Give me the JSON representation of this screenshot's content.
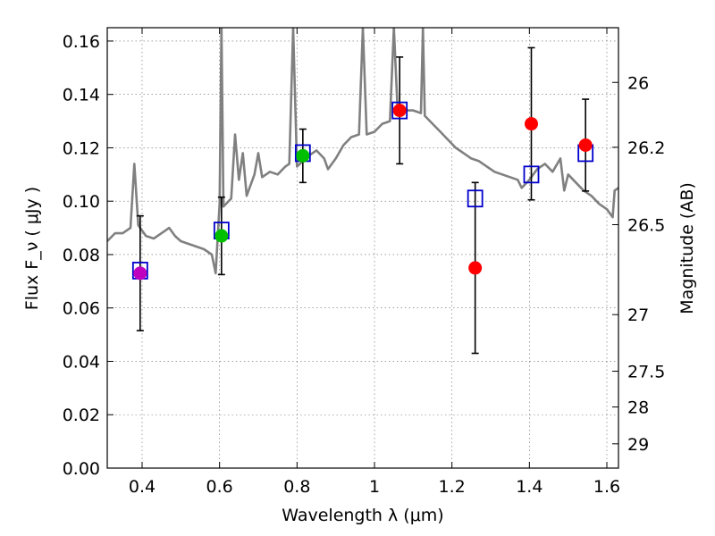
{
  "chart_data": {
    "type": "scatter",
    "title": "",
    "xlabel": "Wavelength  λ (μm)",
    "ylabel": "Flux  F_ν  ( μJy )",
    "ylabel_right": "Magnitude (AB)",
    "xlim": [
      0.31,
      1.63
    ],
    "ylim": [
      0.0,
      0.165
    ],
    "grid": true,
    "x_ticks": [
      0.4,
      0.6,
      0.8,
      1.0,
      1.2,
      1.4,
      1.6
    ],
    "x_tick_labels": [
      "0.4",
      "0.6",
      "0.8",
      "1",
      "1.2",
      "1.4",
      "1.6"
    ],
    "y_ticks": [
      0.0,
      0.02,
      0.04,
      0.06,
      0.08,
      0.1,
      0.12,
      0.14,
      0.16
    ],
    "y_tick_labels": [
      "0.00",
      "0.02",
      "0.04",
      "0.06",
      "0.08",
      "0.10",
      "0.12",
      "0.14",
      "0.16"
    ],
    "right_ticks": [
      {
        "label": "26",
        "flux": 0.1445
      },
      {
        "label": "26.2",
        "flux": 0.1202
      },
      {
        "label": "26.5",
        "flux": 0.0912
      },
      {
        "label": "27",
        "flux": 0.0575
      },
      {
        "label": "27.5",
        "flux": 0.0363
      },
      {
        "label": "28",
        "flux": 0.0229
      },
      {
        "label": "29",
        "flux": 0.0091
      }
    ],
    "observed": [
      {
        "x": 0.395,
        "y": 0.073,
        "err": 0.0215,
        "color": "#bf00bf"
      },
      {
        "x": 0.605,
        "y": 0.087,
        "err": 0.0145,
        "color": "#00bf00"
      },
      {
        "x": 0.815,
        "y": 0.117,
        "err": 0.01,
        "color": "#00bf00"
      },
      {
        "x": 1.065,
        "y": 0.134,
        "err": 0.02,
        "color": "#ff0000"
      },
      {
        "x": 1.26,
        "y": 0.075,
        "err": 0.032,
        "color": "#ff0000"
      },
      {
        "x": 1.405,
        "y": 0.129,
        "err": 0.0285,
        "color": "#ff0000"
      },
      {
        "x": 1.545,
        "y": 0.121,
        "err": 0.0172,
        "color": "#ff0000"
      }
    ],
    "model_points": [
      {
        "x": 0.395,
        "y": 0.074
      },
      {
        "x": 0.605,
        "y": 0.089
      },
      {
        "x": 0.815,
        "y": 0.118
      },
      {
        "x": 1.065,
        "y": 0.134
      },
      {
        "x": 1.26,
        "y": 0.101
      },
      {
        "x": 1.405,
        "y": 0.11
      },
      {
        "x": 1.545,
        "y": 0.118
      }
    ],
    "spectrum": {
      "color": "#808080",
      "points": [
        [
          0.31,
          0.085
        ],
        [
          0.33,
          0.088
        ],
        [
          0.35,
          0.088
        ],
        [
          0.37,
          0.09
        ],
        [
          0.38,
          0.114
        ],
        [
          0.39,
          0.091
        ],
        [
          0.41,
          0.087
        ],
        [
          0.43,
          0.086
        ],
        [
          0.45,
          0.088
        ],
        [
          0.47,
          0.09
        ],
        [
          0.485,
          0.087
        ],
        [
          0.5,
          0.085
        ],
        [
          0.52,
          0.084
        ],
        [
          0.54,
          0.083
        ],
        [
          0.56,
          0.082
        ],
        [
          0.58,
          0.08
        ],
        [
          0.59,
          0.073
        ],
        [
          0.6,
          0.099
        ],
        [
          0.605,
          0.165
        ],
        [
          0.61,
          0.098
        ],
        [
          0.63,
          0.101
        ],
        [
          0.64,
          0.125
        ],
        [
          0.65,
          0.108
        ],
        [
          0.66,
          0.118
        ],
        [
          0.67,
          0.102
        ],
        [
          0.69,
          0.11
        ],
        [
          0.7,
          0.118
        ],
        [
          0.71,
          0.109
        ],
        [
          0.73,
          0.111
        ],
        [
          0.75,
          0.11
        ],
        [
          0.77,
          0.113
        ],
        [
          0.78,
          0.114
        ],
        [
          0.79,
          0.165
        ],
        [
          0.8,
          0.113
        ],
        [
          0.83,
          0.117
        ],
        [
          0.85,
          0.119
        ],
        [
          0.87,
          0.116
        ],
        [
          0.88,
          0.112
        ],
        [
          0.9,
          0.116
        ],
        [
          0.92,
          0.121
        ],
        [
          0.94,
          0.124
        ],
        [
          0.96,
          0.125
        ],
        [
          0.97,
          0.165
        ],
        [
          0.98,
          0.125
        ],
        [
          1.0,
          0.126
        ],
        [
          1.02,
          0.129
        ],
        [
          1.04,
          0.13
        ],
        [
          1.05,
          0.165
        ],
        [
          1.06,
          0.133
        ],
        [
          1.08,
          0.134
        ],
        [
          1.1,
          0.134
        ],
        [
          1.12,
          0.133
        ],
        [
          1.125,
          0.165
        ],
        [
          1.13,
          0.132
        ],
        [
          1.15,
          0.129
        ],
        [
          1.17,
          0.126
        ],
        [
          1.19,
          0.123
        ],
        [
          1.21,
          0.12
        ],
        [
          1.23,
          0.118
        ],
        [
          1.25,
          0.116
        ],
        [
          1.27,
          0.115
        ],
        [
          1.29,
          0.113
        ],
        [
          1.31,
          0.111
        ],
        [
          1.33,
          0.11
        ],
        [
          1.35,
          0.109
        ],
        [
          1.37,
          0.108
        ],
        [
          1.38,
          0.105
        ],
        [
          1.4,
          0.108
        ],
        [
          1.42,
          0.112
        ],
        [
          1.44,
          0.114
        ],
        [
          1.46,
          0.111
        ],
        [
          1.48,
          0.116
        ],
        [
          1.49,
          0.104
        ],
        [
          1.5,
          0.11
        ],
        [
          1.52,
          0.107
        ],
        [
          1.54,
          0.104
        ],
        [
          1.56,
          0.102
        ],
        [
          1.58,
          0.099
        ],
        [
          1.6,
          0.097
        ],
        [
          1.615,
          0.094
        ],
        [
          1.62,
          0.104
        ],
        [
          1.63,
          0.105
        ]
      ]
    }
  }
}
